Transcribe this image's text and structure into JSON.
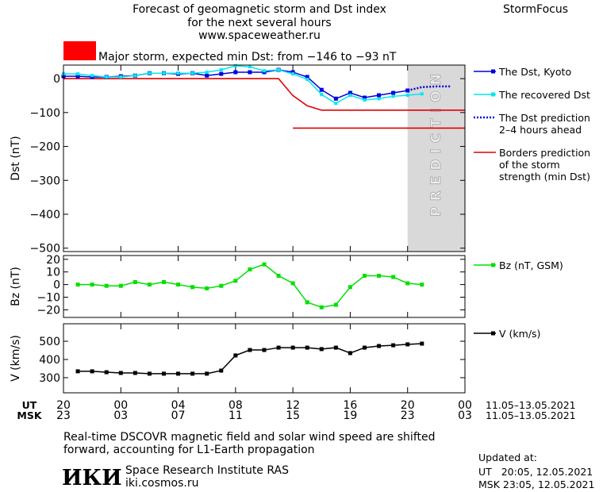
{
  "header": {
    "title_lines": [
      "Forecast of geomagnetic storm and Dst index",
      "for the next several hours",
      "www.spaceweather.ru"
    ],
    "brand": "StormFocus",
    "storm_label": "Major storm, expected min Dst: from −146 to −93 nT",
    "storm_color": "#ff0000"
  },
  "x_axis": {
    "xlim": [
      0,
      28
    ],
    "ut_label": "UT",
    "msk_label": "MSK",
    "ticks": [
      {
        "value": 0,
        "label": "20"
      },
      {
        "value": 4,
        "label": "00"
      },
      {
        "value": 8,
        "label": "04"
      },
      {
        "value": 12,
        "label": "08"
      },
      {
        "value": 16,
        "label": "12"
      },
      {
        "value": 20,
        "label": "16"
      },
      {
        "value": 24,
        "label": "20"
      },
      {
        "value": 28,
        "label": "00"
      }
    ],
    "msk_tick_labels": [
      "23",
      "03",
      "07",
      "11",
      "15",
      "19",
      "23",
      "03"
    ],
    "date_range_ut": "11.05–13.05.2021",
    "date_range_msk": "11.05–13.05.2021"
  },
  "chart_data": [
    {
      "type": "line",
      "ylabel": "Dst (nT)",
      "ylim": [
        -510,
        40
      ],
      "yticks": [
        {
          "value": 0,
          "label": "0"
        },
        {
          "value": -100,
          "label": "−100"
        },
        {
          "value": -200,
          "label": "−200"
        },
        {
          "value": -300,
          "label": "−300"
        },
        {
          "value": -400,
          "label": "−400"
        },
        {
          "value": -500,
          "label": "−500"
        }
      ],
      "prediction_region": {
        "x": [
          24,
          28
        ],
        "label": "PREDICTION",
        "color": "#d9d9d9"
      },
      "series": [
        {
          "name": [
            "The Dst, Kyoto"
          ],
          "color": "#0000e0",
          "marker": "square",
          "dashed": false,
          "x": [
            0,
            1,
            2,
            3,
            4,
            5,
            6,
            7,
            8,
            9,
            10,
            11,
            12,
            13,
            14,
            15,
            16,
            17,
            18,
            19,
            20,
            21,
            22,
            23,
            24
          ],
          "values": [
            7,
            7,
            5,
            5,
            7,
            9,
            16,
            16,
            14,
            16,
            9,
            14,
            19,
            19,
            19,
            26,
            19,
            5,
            -33,
            -59,
            -42,
            -56,
            -49,
            -42,
            -35
          ]
        },
        {
          "name": [
            "The recovered Dst"
          ],
          "color": "#00e8f0",
          "marker": "square",
          "dashed": false,
          "x": [
            0,
            1,
            2,
            3,
            4,
            5,
            6,
            7,
            8,
            9,
            10,
            11,
            12,
            13,
            14,
            15,
            16,
            17,
            18,
            19,
            20,
            21,
            22,
            23,
            24,
            25
          ],
          "values": [
            14,
            14,
            9,
            5,
            5,
            9,
            16,
            16,
            16,
            16,
            19,
            26,
            38,
            35,
            23,
            26,
            14,
            -2,
            -47,
            -73,
            -49,
            -63,
            -59,
            -52,
            -49,
            -45
          ]
        },
        {
          "name": [
            "The Dst prediction",
            "2–4 hours ahead"
          ],
          "color": "#0000e0",
          "marker": null,
          "dashed": true,
          "x": [
            24,
            25,
            26,
            27
          ],
          "values": [
            -35,
            -25,
            -23,
            -23
          ]
        }
      ],
      "borders": {
        "name": [
          "Borders prediction",
          "of the storm",
          "strength (min Dst)"
        ],
        "color": "#e00000",
        "lines": [
          {
            "x": [
              0,
              15,
              16,
              17,
              18,
              28
            ],
            "values": [
              0,
              0,
              -50,
              -80,
              -93,
              -93
            ]
          },
          {
            "x": [
              16,
              28
            ],
            "values": [
              -146,
              -146
            ]
          }
        ]
      }
    },
    {
      "type": "line",
      "ylabel": "Bz (nT)",
      "ylim": [
        -26,
        23
      ],
      "yticks": [
        {
          "value": 20,
          "label": "20"
        },
        {
          "value": 10,
          "label": "10"
        },
        {
          "value": 0,
          "label": "0"
        },
        {
          "value": -10,
          "label": "−10"
        },
        {
          "value": -20,
          "label": "−20"
        }
      ],
      "series": [
        {
          "name": [
            "Bz (nT, GSM)"
          ],
          "color": "#00e000",
          "marker": "square",
          "dashed": false,
          "x": [
            1,
            2,
            3,
            4,
            5,
            6,
            7,
            8,
            9,
            10,
            11,
            12,
            13,
            14,
            15,
            16,
            17,
            18,
            19,
            20,
            21,
            22,
            23,
            24,
            25
          ],
          "values": [
            0,
            0,
            -1,
            -1,
            2,
            0,
            2,
            0,
            -2,
            -3,
            -1,
            3,
            12,
            16,
            7,
            1,
            -14,
            -18,
            -16,
            -2,
            7,
            7,
            6,
            1,
            0
          ]
        }
      ]
    },
    {
      "type": "line",
      "ylabel": "V (km/s)",
      "ylim": [
        217,
        596
      ],
      "yticks": [
        500,
        400,
        300
      ],
      "series": [
        {
          "name": [
            "V (km/s)"
          ],
          "color": "#000000",
          "marker": "square",
          "dashed": false,
          "x": [
            1,
            2,
            3,
            4,
            5,
            6,
            7,
            8,
            9,
            10,
            11,
            12,
            13,
            14,
            15,
            16,
            17,
            18,
            19,
            20,
            21,
            22,
            23,
            24,
            25
          ],
          "values": [
            335,
            335,
            330,
            326,
            326,
            322,
            322,
            322,
            322,
            322,
            339,
            422,
            452,
            452,
            465,
            465,
            465,
            457,
            465,
            435,
            465,
            474,
            478,
            483,
            487
          ]
        }
      ]
    }
  ],
  "footer": {
    "note_lines": [
      "Real-time DSCOVR magnetic field and solar wind speed are shifted",
      "forward, accounting for L1-Earth propagation"
    ],
    "logo": "ИКИ",
    "institute": "Space Research Institute RAS",
    "site": "iki.cosmos.ru",
    "updated_label": "Updated at:",
    "updated_ut": "UT   20:05, 12.05.2021",
    "updated_msk": "MSK 23:05, 12.05.2021"
  }
}
